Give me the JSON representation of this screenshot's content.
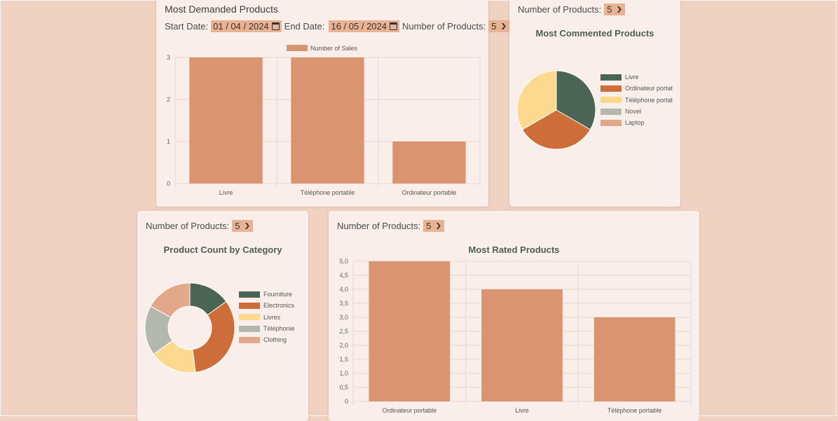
{
  "colors": {
    "bar": "#db9470",
    "dark_green": "#4b6555",
    "orange": "#cd6e3a",
    "yellow": "#fcd98e",
    "gray": "#b3b8ac",
    "peach": "#e2a889"
  },
  "icons": {
    "calendar": "calendar-icon",
    "chevron": "chevron-down-icon"
  },
  "demanded": {
    "title": "Most Demanded Products",
    "start_label": "Start Date:",
    "start_value": "01 / 04 / 2024",
    "end_label": "End Date:",
    "end_value": "16 / 05 / 2024",
    "count_label": "Number of Products:",
    "count_value": "5"
  },
  "commented": {
    "count_label": "Number of Products:",
    "count_value": "5"
  },
  "category": {
    "count_label": "Number of Products:",
    "count_value": "5"
  },
  "rated": {
    "count_label": "Number of Products:",
    "count_value": "5"
  },
  "chart_data": [
    {
      "type": "bar",
      "categories": [
        "Livre",
        "Téléphone portable",
        "Ordinateur portable"
      ],
      "series": [
        {
          "name": "Number of Sales",
          "values": [
            3,
            3,
            1
          ]
        }
      ],
      "ylim": [
        0,
        3
      ],
      "yticks": [
        "0",
        "1",
        "2",
        "3"
      ],
      "legend": "top",
      "grid": true
    },
    {
      "type": "pie",
      "title": "Most Commented Products",
      "labels": [
        "Livre",
        "Ordinateur portat",
        "Téléphone portat",
        "Novel",
        "Laptop"
      ],
      "values": [
        1,
        1,
        1,
        0,
        0
      ],
      "legend": "right"
    },
    {
      "type": "pie",
      "title": "Product Count by Category",
      "labels": [
        "Fourniture",
        "Electronics",
        "Livres",
        "Téléphonie",
        "Clothing"
      ],
      "values": [
        15,
        33,
        17,
        18,
        17
      ],
      "donut": true,
      "legend": "right"
    },
    {
      "type": "bar",
      "title": "Most Rated Products",
      "categories": [
        "Ordinateur portable",
        "Livre",
        "Téléphone portable"
      ],
      "values": [
        5,
        4,
        3
      ],
      "ylim": [
        0,
        5
      ],
      "yticks": [
        "0",
        "0,5",
        "1,0",
        "1,5",
        "2,0",
        "2,5",
        "3,0",
        "3,5",
        "4,0",
        "4,5",
        "5,0"
      ],
      "grid": true
    }
  ]
}
